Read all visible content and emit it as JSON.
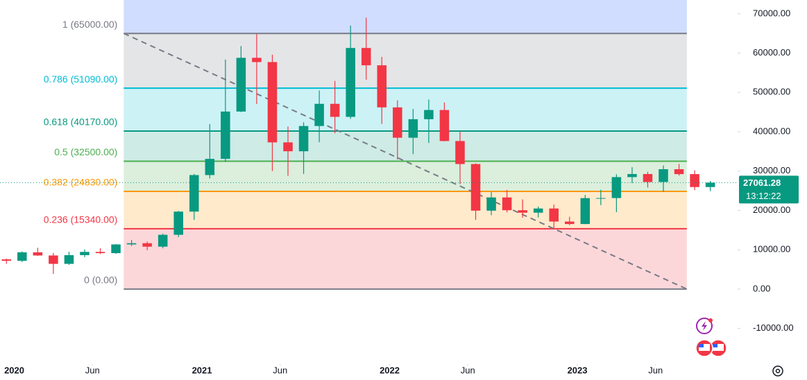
{
  "chart_data": {
    "type": "candlestick",
    "x": [
      "2019-12",
      "2020-01",
      "2020-02",
      "2020-03",
      "2020-04",
      "2020-05",
      "2020-06",
      "2020-07",
      "2020-08",
      "2020-09",
      "2020-10",
      "2020-11",
      "2020-12",
      "2021-01",
      "2021-02",
      "2021-03",
      "2021-04",
      "2021-05",
      "2021-06",
      "2021-07",
      "2021-08",
      "2021-09",
      "2021-10",
      "2021-11",
      "2021-12",
      "2022-01",
      "2022-02",
      "2022-03",
      "2022-04",
      "2022-05",
      "2022-06",
      "2022-07",
      "2022-08",
      "2022-09",
      "2022-10",
      "2022-11",
      "2022-12",
      "2023-01",
      "2023-02",
      "2023-03",
      "2023-04",
      "2023-05",
      "2023-06",
      "2023-07",
      "2023-08",
      "2023-09"
    ],
    "open": [
      7550,
      7190,
      9350,
      8540,
      6410,
      8630,
      9450,
      9140,
      11350,
      11660,
      10780,
      13800,
      19700,
      28990,
      33110,
      45140,
      58800,
      57720,
      37300,
      35040,
      41460,
      47100,
      43790,
      61300,
      56900,
      46200,
      38480,
      43190,
      45530,
      37640,
      31790,
      19940,
      23300,
      20050,
      19420,
      20490,
      17170,
      16540,
      23130,
      23150,
      28470,
      29250,
      27220,
      30480,
      29230,
      25940
    ],
    "high": [
      7750,
      9580,
      10500,
      9190,
      9460,
      10080,
      10380,
      11440,
      12470,
      12090,
      14100,
      19860,
      29300,
      41950,
      58350,
      61780,
      64860,
      59600,
      41330,
      42400,
      50500,
      52920,
      67000,
      69000,
      59040,
      47990,
      45800,
      48190,
      47440,
      40040,
      31980,
      24670,
      25210,
      22800,
      20990,
      21480,
      18390,
      23950,
      25250,
      29190,
      31000,
      29820,
      31430,
      31800,
      30200,
      27480
    ],
    "low": [
      6430,
      6870,
      8450,
      3850,
      6150,
      8100,
      8900,
      8950,
      10980,
      9880,
      10380,
      13220,
      17600,
      28130,
      32300,
      45000,
      47040,
      30000,
      28800,
      29280,
      37330,
      39600,
      43280,
      53250,
      42000,
      32950,
      34320,
      37150,
      37580,
      26700,
      17600,
      18780,
      19540,
      18150,
      18190,
      15480,
      16260,
      16500,
      21350,
      19550,
      26940,
      25810,
      24750,
      28860,
      25150,
      24900
    ],
    "close": [
      7190,
      9350,
      8540,
      6410,
      8630,
      9450,
      9140,
      11350,
      11660,
      10780,
      13800,
      19700,
      28990,
      33110,
      45140,
      58800,
      57720,
      37300,
      35040,
      41460,
      47100,
      43790,
      61300,
      56900,
      46200,
      38480,
      43190,
      45530,
      37640,
      31790,
      19940,
      23300,
      20050,
      19420,
      20490,
      17170,
      16540,
      23130,
      23150,
      28470,
      29250,
      27220,
      30480,
      29230,
      25940,
      27061.28
    ],
    "up_color": "#089981",
    "down_color": "#f23645",
    "xlim": [
      "2019-12",
      "2023-12"
    ],
    "xticks": [
      {
        "value": "2020-01",
        "label": "2020"
      },
      {
        "value": "2020-06",
        "label": "Jun"
      },
      {
        "value": "2021-01",
        "label": "2021"
      },
      {
        "value": "2021-06",
        "label": "Jun"
      },
      {
        "value": "2022-01",
        "label": "2022"
      },
      {
        "value": "2022-06",
        "label": "Jun"
      },
      {
        "value": "2023-01",
        "label": "2023"
      },
      {
        "value": "2023-06",
        "label": "Jun"
      }
    ],
    "ylim": [
      -17300,
      73500
    ],
    "yticks": [
      {
        "value": 70000,
        "label": "70000.00"
      },
      {
        "value": 60000,
        "label": "60000.00"
      },
      {
        "value": 50000,
        "label": "50000.00"
      },
      {
        "value": 40000,
        "label": "40000.00"
      },
      {
        "value": 30000,
        "label": "30000.00"
      },
      {
        "value": 20000,
        "label": "20000.00"
      },
      {
        "value": 10000,
        "label": "10000.00"
      },
      {
        "value": 0,
        "label": "0.00"
      },
      {
        "value": -10000,
        "label": "-10000.00"
      }
    ],
    "last_price": 27061.28,
    "countdown": "13:12:22",
    "fibonacci": {
      "start": "2020-08",
      "end": "2023-08",
      "top_band_color": "#2962ff",
      "levels": [
        {
          "label": "1 (65000.00)",
          "price": 65000,
          "color": "#787b86"
        },
        {
          "label": "0.786 (51090.00)",
          "price": 51090,
          "color": "#00bcd4"
        },
        {
          "label": "0.618 (40170.00)",
          "price": 40170,
          "color": "#089981"
        },
        {
          "label": "0.5 (32500.00)",
          "price": 32500,
          "color": "#4caf50"
        },
        {
          "label": "0.382 (24830.00)",
          "price": 24830,
          "color": "#ff9800"
        },
        {
          "label": "0.236 (15340.00)",
          "price": 15340,
          "color": "#f23645"
        },
        {
          "label": "0 (0.00)",
          "price": 0,
          "color": "#787b86"
        }
      ]
    }
  }
}
